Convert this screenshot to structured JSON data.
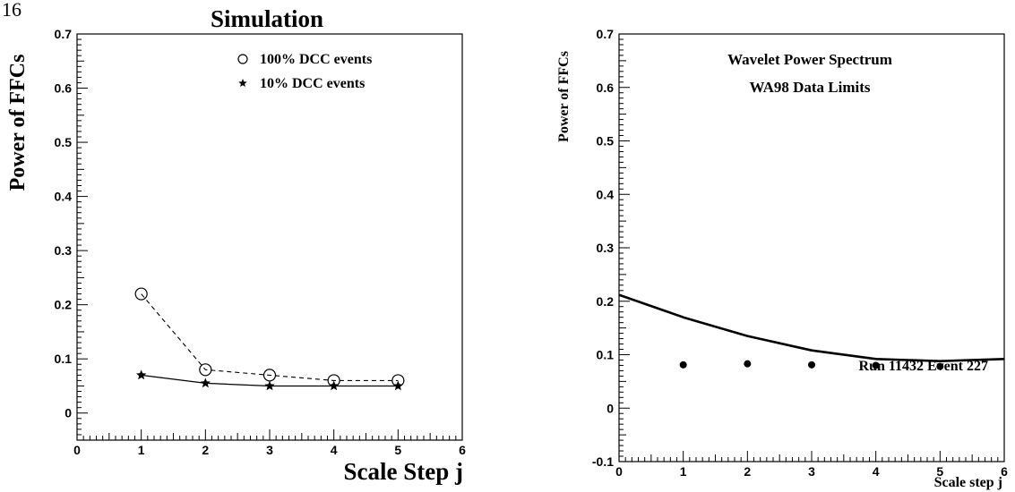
{
  "page_number": "16",
  "chart_data": [
    {
      "type": "line",
      "title": "Simulation",
      "xlabel": "Scale Step j",
      "ylabel": "Power of FFCs",
      "xlim": [
        0,
        6
      ],
      "ylim": [
        -0.05,
        0.7
      ],
      "xticks": [
        "0",
        "1",
        "2",
        "3",
        "4",
        "5",
        "6"
      ],
      "yticks": [
        "0",
        "0.1",
        "0.2",
        "0.3",
        "0.4",
        "0.5",
        "0.6",
        "0.7"
      ],
      "legend_position": "top-right",
      "series": [
        {
          "name": "100% DCC events",
          "marker": "open-circle",
          "line": "dashed",
          "x": [
            1,
            2,
            3,
            4,
            5
          ],
          "values": [
            0.22,
            0.08,
            0.07,
            0.06,
            0.06
          ]
        },
        {
          "name": "10% DCC events",
          "marker": "star",
          "line": "solid",
          "x": [
            1,
            2,
            3,
            4,
            5
          ],
          "values": [
            0.07,
            0.055,
            0.05,
            0.05,
            0.05
          ]
        }
      ]
    },
    {
      "type": "scatter",
      "title": "",
      "annotations": [
        "Wavelet Power Spectrum",
        "WA98 Data Limits",
        "Run 11432 Event 227"
      ],
      "xlabel": "Scale step j",
      "ylabel": "Power of FFCs",
      "xlim": [
        0,
        6
      ],
      "ylim": [
        -0.1,
        0.7
      ],
      "xticks": [
        "0",
        "1",
        "2",
        "3",
        "4",
        "5",
        "6"
      ],
      "yticks": [
        "-0.1",
        "0",
        "0.1",
        "0.2",
        "0.3",
        "0.4",
        "0.5",
        "0.6",
        "0.7"
      ],
      "series": [
        {
          "marker": "filled-dot",
          "x": [
            1,
            2,
            3,
            4,
            5
          ],
          "values": [
            0.081,
            0.083,
            0.081,
            0.08,
            0.078
          ]
        }
      ],
      "curve": {
        "x": [
          0,
          1,
          2,
          3,
          4,
          5,
          6
        ],
        "values": [
          0.212,
          0.17,
          0.135,
          0.108,
          0.092,
          0.088,
          0.092
        ]
      }
    }
  ]
}
